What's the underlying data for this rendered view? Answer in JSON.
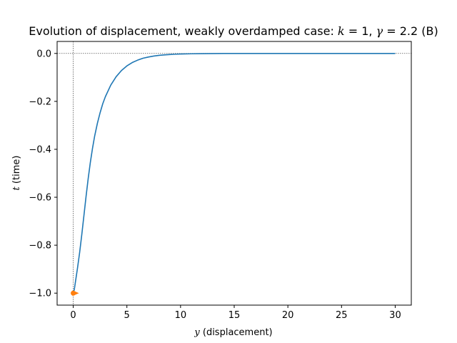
{
  "chart_data": {
    "type": "line",
    "title": {
      "prefix": "Evolution of displacement, weakly overdamped case: ",
      "k_symbol": "k",
      "k_eq": " = 1, ",
      "gamma_symbol": "γ",
      "gamma_eq": " = 2.2 (B)"
    },
    "xlabel": {
      "symbol": "y",
      "text": " (displacement)"
    },
    "ylabel": {
      "symbol": "t",
      "text": " (time)"
    },
    "xlim": [
      -1.5,
      31.5
    ],
    "ylim": [
      -1.05,
      0.05
    ],
    "x_ticks": [
      0,
      5,
      10,
      15,
      20,
      25,
      30
    ],
    "x_tick_labels": [
      "0",
      "5",
      "10",
      "15",
      "20",
      "25",
      "30"
    ],
    "y_ticks": [
      0.0,
      -0.2,
      -0.4,
      -0.6,
      -0.8,
      -1.0
    ],
    "y_tick_labels": [
      "0.0",
      "−0.2",
      "−0.4",
      "−0.6",
      "−0.8",
      "−1.0"
    ],
    "reference_lines": {
      "x": 0,
      "y": 0,
      "style": "dotted"
    },
    "grid": false,
    "series": [
      {
        "color": "#1f77b4",
        "x": [
          0,
          0.1,
          0.2,
          0.4,
          0.6,
          0.8,
          1.0,
          1.2,
          1.4,
          1.6,
          1.8,
          2.0,
          2.25,
          2.5,
          2.75,
          3.0,
          3.5,
          4.0,
          4.5,
          5.0,
          5.5,
          6.0,
          6.5,
          7.0,
          7.5,
          8.0,
          8.5,
          9.0,
          9.5,
          10,
          11,
          12,
          13,
          14,
          15,
          17.5,
          20,
          22.5,
          25,
          27.5,
          30
        ],
        "y": [
          -1.0,
          -0.985,
          -0.955,
          -0.895,
          -0.83,
          -0.755,
          -0.675,
          -0.595,
          -0.52,
          -0.453,
          -0.395,
          -0.344,
          -0.292,
          -0.248,
          -0.21,
          -0.18,
          -0.132,
          -0.097,
          -0.071,
          -0.052,
          -0.038,
          -0.028,
          -0.02,
          -0.015,
          -0.011,
          -0.008,
          -0.006,
          -0.0045,
          -0.0033,
          -0.0025,
          -0.0014,
          -0.0008,
          -0.0004,
          -0.0002,
          -0.0001,
          0,
          0,
          0,
          0,
          0,
          0
        ]
      }
    ],
    "markers": [
      {
        "x": 0,
        "y": -1.0,
        "shape": "circle",
        "color": "#ff7f0e"
      },
      {
        "x": 0.2,
        "y": -1.0,
        "shape": "triangle-right",
        "color": "#ff7f0e"
      }
    ]
  }
}
